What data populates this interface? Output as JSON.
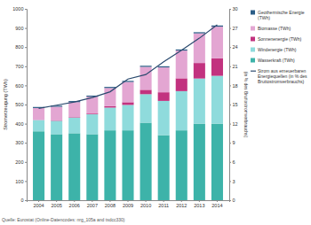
{
  "chart_data": {
    "type": "bar",
    "stacked": true,
    "categories": [
      "2004",
      "2005",
      "2006",
      "2007",
      "2008",
      "2009",
      "2010",
      "2011",
      "2012",
      "2013",
      "2014"
    ],
    "series": [
      {
        "name": "Wasserkraft (TWh)",
        "color": "#3db3a9",
        "values": [
          360,
          345,
          350,
          345,
          365,
          365,
          405,
          340,
          365,
          400,
          400
        ]
      },
      {
        "name": "Windenergie (TWh)",
        "color": "#8fdbdc",
        "values": [
          59,
          70,
          82,
          104,
          119,
          133,
          149,
          179,
          205,
          236,
          250
        ]
      },
      {
        "name": "Sonnenenergie (TWh)",
        "color": "#c2327f",
        "values": [
          0.7,
          1.5,
          2.5,
          3.8,
          7.4,
          14,
          23,
          45,
          67,
          81,
          92
        ]
      },
      {
        "name": "Biomasse (TWh)",
        "color": "#e3a6d2",
        "values": [
          62,
          72,
          78,
          88,
          95,
          106,
          120,
          130,
          145,
          155,
          165
        ]
      },
      {
        "name": "Geothermische Energie (TWh)",
        "color": "#2c5d86",
        "values": [
          5.5,
          5.4,
          5.6,
          5.8,
          5.7,
          5.6,
          5.6,
          5.9,
          5.8,
          5.9,
          6.0
        ]
      },
      {
        "name": "Strom aus erneuerbaren Energiequellen (in % des Bruttostromverbrauchs)",
        "color": "#2b4a6f",
        "type": "line",
        "axis": "y2",
        "values": [
          14.4,
          14.9,
          15.4,
          16.1,
          17.0,
          19.0,
          19.7,
          21.7,
          23.5,
          25.4,
          27.5
        ]
      }
    ],
    "ylim": [
      0,
      1000
    ],
    "yticks": [
      0,
      100,
      200,
      300,
      400,
      500,
      600,
      700,
      800,
      900,
      1000
    ],
    "y2lim": [
      0,
      30
    ],
    "y2ticks": [
      0,
      3,
      6,
      9,
      12,
      15,
      18,
      21,
      24,
      27,
      30
    ],
    "y_label": "Stromerzeugung (TWh)",
    "y2_label": "(in % des Bruttostromverbrauchs)",
    "source": "Quelle: Eurostat (Online-Datencodes: nrg_105a and tsdcc330)",
    "grid": false,
    "legend": "right"
  }
}
